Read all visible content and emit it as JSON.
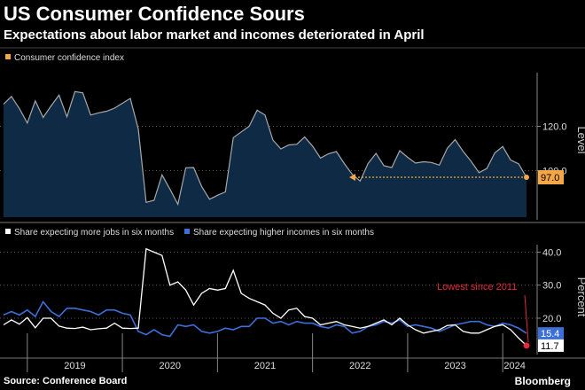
{
  "header": {
    "title": "US Consumer Confidence Sours",
    "subtitle": "Expectations about labor market and incomes deteriorated in April"
  },
  "footer": {
    "source": "Source: Conference Board",
    "brand": "Bloomberg"
  },
  "colors": {
    "conf_fill": "#0e2a45",
    "conf_line": "#a8a8a8",
    "orange": "#f5a646",
    "jobs": "#ffffff",
    "incomes": "#3d6fd9",
    "red": "#e8283a",
    "grid": "#5a5a5a"
  },
  "chart_data": [
    {
      "type": "area",
      "legend": [
        "Consumer confidence index"
      ],
      "ylabel": "Level",
      "ylim": [
        79,
        143
      ],
      "yticks": [
        100.0,
        120.0
      ],
      "current_label": "97.0",
      "series": [
        {
          "name": "Consumer confidence index",
          "x": [
            "2018-10",
            "2018-11",
            "2018-12",
            "2019-01",
            "2019-02",
            "2019-03",
            "2019-04",
            "2019-05",
            "2019-06",
            "2019-07",
            "2019-08",
            "2019-09",
            "2019-10",
            "2019-11",
            "2019-12",
            "2020-01",
            "2020-02",
            "2020-03",
            "2020-04",
            "2020-05",
            "2020-06",
            "2020-07",
            "2020-08",
            "2020-09",
            "2020-10",
            "2020-11",
            "2020-12",
            "2021-01",
            "2021-02",
            "2021-03",
            "2021-04",
            "2021-05",
            "2021-06",
            "2021-07",
            "2021-08",
            "2021-09",
            "2021-10",
            "2021-11",
            "2021-12",
            "2022-01",
            "2022-02",
            "2022-03",
            "2022-04",
            "2022-05",
            "2022-06",
            "2022-07",
            "2022-08",
            "2022-09",
            "2022-10",
            "2022-11",
            "2022-12",
            "2023-01",
            "2023-02",
            "2023-03",
            "2023-04",
            "2023-05",
            "2023-06",
            "2023-07",
            "2023-08",
            "2023-09",
            "2023-10",
            "2023-11",
            "2023-12",
            "2024-01",
            "2024-02",
            "2024-03",
            "2024-04"
          ],
          "values": [
            130.0,
            133.5,
            128.0,
            121.5,
            131.5,
            124.0,
            129.2,
            134.1,
            124.3,
            135.7,
            135.1,
            125.1,
            126.1,
            126.8,
            128.2,
            130.4,
            132.6,
            118.8,
            85.7,
            86.6,
            98.1,
            91.7,
            84.8,
            101.3,
            101.4,
            92.9,
            87.1,
            88.9,
            90.4,
            114.9,
            117.5,
            120.0,
            127.3,
            125.1,
            113.8,
            109.8,
            111.6,
            111.9,
            115.2,
            111.1,
            105.7,
            107.6,
            108.6,
            103.2,
            98.4,
            95.3,
            103.2,
            107.8,
            102.2,
            101.4,
            109.0,
            106.0,
            103.4,
            104.0,
            103.7,
            102.5,
            110.1,
            114.0,
            108.7,
            104.3,
            99.1,
            101.0,
            108.0,
            110.9,
            104.8,
            103.1,
            97.0
          ]
        }
      ]
    },
    {
      "type": "line",
      "legend": [
        "Share expecting more jobs in six months",
        "Share expecting higher incomes in six months"
      ],
      "ylabel": "Percent",
      "ylim": [
        9,
        42
      ],
      "yticks": [
        20.0,
        30.0,
        40.0
      ],
      "x_ticks": [
        "2019",
        "2020",
        "2021",
        "2022",
        "2023",
        "2024"
      ],
      "annotation": "Lowest since 2011",
      "end_labels": {
        "incomes": "15.4",
        "jobs": "11.7"
      },
      "series": [
        {
          "name": "Share expecting more jobs in six months",
          "x": [
            "2018-10",
            "2018-11",
            "2018-12",
            "2019-01",
            "2019-02",
            "2019-03",
            "2019-04",
            "2019-05",
            "2019-06",
            "2019-07",
            "2019-08",
            "2019-09",
            "2019-10",
            "2019-11",
            "2019-12",
            "2020-01",
            "2020-02",
            "2020-03",
            "2020-04",
            "2020-05",
            "2020-06",
            "2020-07",
            "2020-08",
            "2020-09",
            "2020-10",
            "2020-11",
            "2020-12",
            "2021-01",
            "2021-02",
            "2021-03",
            "2021-04",
            "2021-05",
            "2021-06",
            "2021-07",
            "2021-08",
            "2021-09",
            "2021-10",
            "2021-11",
            "2021-12",
            "2022-01",
            "2022-02",
            "2022-03",
            "2022-04",
            "2022-05",
            "2022-06",
            "2022-07",
            "2022-08",
            "2022-09",
            "2022-10",
            "2022-11",
            "2022-12",
            "2023-01",
            "2023-02",
            "2023-03",
            "2023-04",
            "2023-05",
            "2023-06",
            "2023-07",
            "2023-08",
            "2023-09",
            "2023-10",
            "2023-11",
            "2023-12",
            "2024-01",
            "2024-02",
            "2024-03",
            "2024-04"
          ],
          "values": [
            18.0,
            19.5,
            18.2,
            20.2,
            17.1,
            20.0,
            20.0,
            17.6,
            17.0,
            16.9,
            17.3,
            16.5,
            16.8,
            17.0,
            18.5,
            17.0,
            16.9,
            17.0,
            41.0,
            40.0,
            39.0,
            30.0,
            31.0,
            28.5,
            24.0,
            27.5,
            29.0,
            28.5,
            29.0,
            34.5,
            27.5,
            26.0,
            25.0,
            24.0,
            21.5,
            20.0,
            22.5,
            23.0,
            20.5,
            20.0,
            18.0,
            18.5,
            19.0,
            18.0,
            17.5,
            17.0,
            17.5,
            18.5,
            19.5,
            18.0,
            20.0,
            18.0,
            16.5,
            15.5,
            16.0,
            16.5,
            17.8,
            18.0,
            16.0,
            15.5,
            15.5,
            16.5,
            17.5,
            18.0,
            16.5,
            14.0,
            11.7
          ]
        },
        {
          "name": "Share expecting higher incomes in six months",
          "x": [
            "2018-10",
            "2018-11",
            "2018-12",
            "2019-01",
            "2019-02",
            "2019-03",
            "2019-04",
            "2019-05",
            "2019-06",
            "2019-07",
            "2019-08",
            "2019-09",
            "2019-10",
            "2019-11",
            "2019-12",
            "2020-01",
            "2020-02",
            "2020-03",
            "2020-04",
            "2020-05",
            "2020-06",
            "2020-07",
            "2020-08",
            "2020-09",
            "2020-10",
            "2020-11",
            "2020-12",
            "2021-01",
            "2021-02",
            "2021-03",
            "2021-04",
            "2021-05",
            "2021-06",
            "2021-07",
            "2021-08",
            "2021-09",
            "2021-10",
            "2021-11",
            "2021-12",
            "2022-01",
            "2022-02",
            "2022-03",
            "2022-04",
            "2022-05",
            "2022-06",
            "2022-07",
            "2022-08",
            "2022-09",
            "2022-10",
            "2022-11",
            "2022-12",
            "2023-01",
            "2023-02",
            "2023-03",
            "2023-04",
            "2023-05",
            "2023-06",
            "2023-07",
            "2023-08",
            "2023-09",
            "2023-10",
            "2023-11",
            "2023-12",
            "2024-01",
            "2024-02",
            "2024-03",
            "2024-04"
          ],
          "values": [
            21.0,
            22.0,
            21.0,
            22.5,
            20.5,
            25.0,
            22.0,
            20.5,
            23.0,
            23.0,
            22.5,
            22.0,
            21.0,
            22.5,
            22.5,
            21.5,
            21.0,
            16.0,
            15.0,
            16.5,
            15.0,
            14.5,
            18.0,
            17.5,
            18.0,
            16.0,
            15.5,
            16.0,
            17.0,
            16.5,
            17.5,
            17.5,
            20.0,
            20.0,
            18.5,
            19.0,
            18.0,
            19.0,
            18.5,
            18.5,
            17.5,
            17.0,
            18.0,
            17.5,
            15.5,
            16.0,
            17.5,
            18.0,
            19.0,
            18.5,
            19.5,
            17.5,
            18.0,
            17.5,
            17.0,
            16.0,
            17.0,
            18.0,
            18.5,
            19.0,
            19.0,
            18.0,
            17.5,
            18.5,
            18.0,
            17.0,
            15.4
          ]
        }
      ]
    }
  ]
}
